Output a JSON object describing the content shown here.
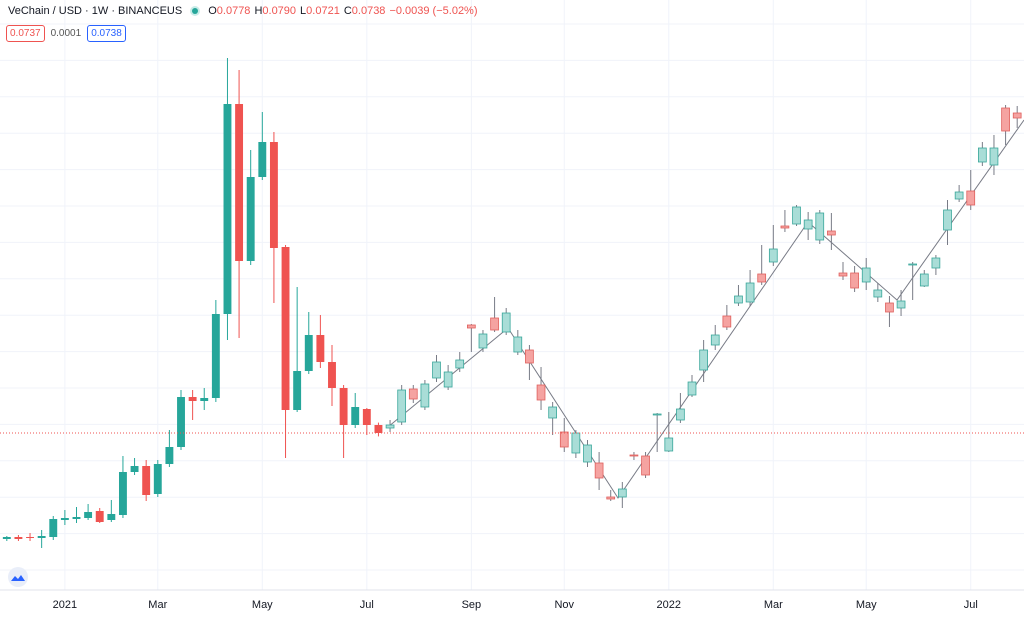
{
  "header": {
    "symbol": "VeChain / USD · 1W · BINANCEUS",
    "ohlc": [
      {
        "label": "O",
        "value": "0.0778"
      },
      {
        "label": "H",
        "value": "0.0790"
      },
      {
        "label": "L",
        "value": "0.0721"
      },
      {
        "label": "C",
        "value": "0.0738"
      }
    ],
    "change": "−0.0039 (−5.02%)",
    "badges": [
      "0.0737",
      "0.0001",
      "0.0738"
    ]
  },
  "chart_data": {
    "type": "candlestick",
    "categories": [
      null,
      null,
      null,
      null,
      null,
      "2021",
      null,
      null,
      null,
      null,
      null,
      null,
      null,
      "Mar",
      null,
      null,
      null,
      null,
      null,
      null,
      null,
      null,
      "May",
      null,
      null,
      null,
      null,
      null,
      null,
      null,
      null,
      "Jul",
      null,
      null,
      null,
      null,
      null,
      null,
      null,
      null,
      "Sep",
      null,
      null,
      null,
      null,
      null,
      null,
      null,
      "Nov",
      null,
      null,
      null,
      null,
      null,
      null,
      null,
      null,
      "2022",
      null,
      null,
      null,
      null,
      null,
      null,
      null,
      null,
      "Mar",
      null,
      null,
      null,
      null,
      null,
      null,
      null,
      "May",
      null,
      null,
      null,
      null,
      null,
      null,
      null,
      null,
      "Jul",
      null,
      null,
      null,
      null
    ],
    "ylim": [
      -0.0047,
      0.2903
    ],
    "price_line": {
      "value": 0.0738,
      "color": "#ef5350"
    },
    "series": [
      {
        "up_color": "#26a69a",
        "down_color": "#ef5350",
        "style": "solid",
        "open": [
          0.0208,
          0.0218,
          0.0218,
          0.0213,
          0.0218,
          0.0303,
          0.0308,
          0.0313,
          0.0348,
          0.0303,
          0.0328,
          0.0543,
          0.0573,
          0.0433,
          0.0583,
          0.0668,
          0.0918,
          0.0898,
          0.0913,
          0.1333,
          0.2383,
          0.1598,
          0.2018,
          0.2193,
          0.1668,
          0.0853,
          0.1048,
          0.1228,
          0.1093,
          0.0963,
          0.0778,
          0.0858,
          0.0778,
          null,
          null,
          null,
          null,
          null,
          null,
          null,
          null,
          null,
          null,
          null,
          null,
          null,
          null,
          null,
          null,
          null,
          null,
          null,
          null,
          null,
          null,
          null,
          null,
          null,
          null,
          null,
          null,
          null,
          null,
          null,
          null,
          null,
          null,
          null,
          null,
          null,
          null,
          null,
          null,
          null,
          null,
          null,
          null,
          null,
          null,
          null,
          null,
          null,
          null,
          null,
          null,
          null,
          null,
          null
        ],
        "high": [
          0.0223,
          0.0228,
          0.0238,
          0.0253,
          0.0323,
          0.0353,
          0.0368,
          0.0383,
          0.0363,
          0.0403,
          0.0623,
          0.0613,
          0.0603,
          0.0603,
          0.0753,
          0.0953,
          0.0953,
          0.0963,
          0.1403,
          0.2613,
          0.2553,
          0.2153,
          0.2343,
          0.2243,
          0.1678,
          0.1468,
          0.1343,
          0.1328,
          0.1178,
          0.0978,
          0.0938,
          0.0863,
          0.079,
          null,
          null,
          null,
          null,
          null,
          null,
          null,
          null,
          null,
          null,
          null,
          null,
          null,
          null,
          null,
          null,
          null,
          null,
          null,
          null,
          null,
          null,
          null,
          null,
          null,
          null,
          null,
          null,
          null,
          null,
          null,
          null,
          null,
          null,
          null,
          null,
          null,
          null,
          null,
          null,
          null,
          null,
          null,
          null,
          null,
          null,
          null,
          null,
          null,
          null,
          null,
          null,
          null,
          null,
          null
        ],
        "low": [
          0.0198,
          0.0198,
          0.0198,
          0.0163,
          0.0203,
          0.0278,
          0.0288,
          0.0303,
          0.0288,
          0.0293,
          0.0313,
          0.0528,
          0.0398,
          0.0418,
          0.0568,
          0.0653,
          0.0803,
          0.0853,
          0.0893,
          0.1203,
          0.1213,
          0.1578,
          0.2003,
          0.1388,
          0.0613,
          0.0843,
          0.1033,
          0.1063,
          0.0873,
          0.0613,
          0.0763,
          0.0728,
          0.0721,
          null,
          null,
          null,
          null,
          null,
          null,
          null,
          null,
          null,
          null,
          null,
          null,
          null,
          null,
          null,
          null,
          null,
          null,
          null,
          null,
          null,
          null,
          null,
          null,
          null,
          null,
          null,
          null,
          null,
          null,
          null,
          null,
          null,
          null,
          null,
          null,
          null,
          null,
          null,
          null,
          null,
          null,
          null,
          null,
          null,
          null,
          null,
          null,
          null,
          null,
          null,
          null,
          null,
          null,
          null
        ],
        "close": [
          0.0218,
          0.0208,
          0.0213,
          0.0223,
          0.0308,
          0.0313,
          0.0318,
          0.0343,
          0.0293,
          0.0333,
          0.0543,
          0.0573,
          0.0428,
          0.0583,
          0.0668,
          0.0918,
          0.0898,
          0.0913,
          0.1333,
          0.2383,
          0.1598,
          0.2018,
          0.2193,
          0.1663,
          0.0853,
          0.1048,
          0.1228,
          0.1093,
          0.0963,
          0.0778,
          0.0868,
          0.0778,
          0.0738,
          null,
          null,
          null,
          null,
          null,
          null,
          null,
          null,
          null,
          null,
          null,
          null,
          null,
          null,
          null,
          null,
          null,
          null,
          null,
          null,
          null,
          null,
          null,
          null,
          null,
          null,
          null,
          null,
          null,
          null,
          null,
          null,
          null,
          null,
          null,
          null,
          null,
          null,
          null,
          null,
          null,
          null,
          null,
          null,
          null,
          null,
          null,
          null,
          null,
          null,
          null,
          null,
          null,
          null,
          null
        ]
      },
      {
        "up_color": "#a9ddd7",
        "down_color": "#f5a3a1",
        "style": "pale",
        "open": [
          null,
          null,
          null,
          null,
          null,
          null,
          null,
          null,
          null,
          null,
          null,
          null,
          null,
          null,
          null,
          null,
          null,
          null,
          null,
          null,
          null,
          null,
          null,
          null,
          null,
          null,
          null,
          null,
          null,
          null,
          null,
          null,
          null,
          0.0763,
          0.0793,
          0.0958,
          0.0868,
          0.1013,
          0.0968,
          0.1063,
          0.1278,
          0.1163,
          0.1313,
          0.1243,
          0.1143,
          0.1153,
          0.0978,
          0.0813,
          0.0743,
          0.0638,
          0.0593,
          0.0588,
          0.0418,
          0.0418,
          0.0628,
          0.0623,
          0.0828,
          0.0648,
          0.0803,
          0.0928,
          0.1053,
          0.1178,
          0.1323,
          0.1388,
          0.1393,
          0.1533,
          0.1593,
          0.1773,
          0.1783,
          0.1758,
          0.1703,
          0.1748,
          0.1538,
          0.1538,
          0.1493,
          0.1418,
          0.1388,
          0.1363,
          0.1578,
          0.1473,
          0.1563,
          0.1753,
          0.1908,
          0.1948,
          0.2093,
          0.2078,
          0.2363,
          0.2338
        ],
        "high": [
          null,
          null,
          null,
          null,
          null,
          null,
          null,
          null,
          null,
          null,
          null,
          null,
          null,
          null,
          null,
          null,
          null,
          null,
          null,
          null,
          null,
          null,
          null,
          null,
          null,
          null,
          null,
          null,
          null,
          null,
          null,
          null,
          null,
          0.0803,
          0.0978,
          0.0978,
          0.1003,
          0.1128,
          0.1078,
          0.1143,
          0.1283,
          0.1253,
          0.1418,
          0.1363,
          0.1253,
          0.1178,
          0.1068,
          0.0893,
          0.0813,
          0.0753,
          0.0703,
          0.0643,
          0.0453,
          0.0493,
          0.0643,
          0.0643,
          0.0838,
          0.0843,
          0.0938,
          0.1028,
          0.1203,
          0.1278,
          0.1378,
          0.1478,
          0.1553,
          0.1678,
          0.1778,
          0.1853,
          0.1878,
          0.1843,
          0.1853,
          0.1838,
          0.1593,
          0.1573,
          0.1613,
          0.1488,
          0.1423,
          0.1453,
          0.1593,
          0.1553,
          0.1628,
          0.1903,
          0.1978,
          0.2053,
          0.2193,
          0.2228,
          0.2378,
          0.2373
        ],
        "low": [
          null,
          null,
          null,
          null,
          null,
          null,
          null,
          null,
          null,
          null,
          null,
          null,
          null,
          null,
          null,
          null,
          null,
          null,
          null,
          null,
          null,
          null,
          null,
          null,
          null,
          null,
          null,
          null,
          null,
          null,
          null,
          null,
          null,
          0.0743,
          0.0778,
          0.0888,
          0.0853,
          0.0993,
          0.0953,
          0.1043,
          0.1143,
          0.1143,
          0.1243,
          0.1228,
          0.1128,
          0.1003,
          0.0853,
          0.0728,
          0.0643,
          0.0613,
          0.0568,
          0.0453,
          0.0398,
          0.0363,
          0.0603,
          0.0513,
          0.0643,
          0.0643,
          0.0788,
          0.0918,
          0.0993,
          0.1153,
          0.1253,
          0.1373,
          0.1373,
          0.1478,
          0.1573,
          0.1743,
          0.1773,
          0.1703,
          0.1683,
          0.1653,
          0.1503,
          0.1443,
          0.1453,
          0.1393,
          0.1268,
          0.1323,
          0.1403,
          0.1468,
          0.1528,
          0.1678,
          0.1893,
          0.1853,
          0.2073,
          0.2028,
          0.2178,
          0.2263
        ],
        "close": [
          null,
          null,
          null,
          null,
          null,
          null,
          null,
          null,
          null,
          null,
          null,
          null,
          null,
          null,
          null,
          null,
          null,
          null,
          null,
          null,
          null,
          null,
          null,
          null,
          null,
          null,
          null,
          null,
          null,
          null,
          null,
          null,
          null,
          0.0778,
          0.0953,
          0.0908,
          0.0983,
          0.1093,
          0.1043,
          0.1103,
          0.1263,
          0.1233,
          0.1253,
          0.1338,
          0.1218,
          0.1088,
          0.0903,
          0.0868,
          0.0668,
          0.0738,
          0.0678,
          0.0513,
          0.0408,
          0.0458,
          0.0623,
          0.0528,
          0.0833,
          0.0713,
          0.0858,
          0.0993,
          0.1153,
          0.1228,
          0.1268,
          0.1423,
          0.1488,
          0.1493,
          0.1658,
          0.1763,
          0.1868,
          0.1803,
          0.1838,
          0.1728,
          0.1523,
          0.1463,
          0.1563,
          0.1453,
          0.1343,
          0.1398,
          0.1583,
          0.1533,
          0.1613,
          0.1853,
          0.1943,
          0.1878,
          0.2163,
          0.2163,
          0.2248,
          0.2313
        ]
      }
    ]
  }
}
